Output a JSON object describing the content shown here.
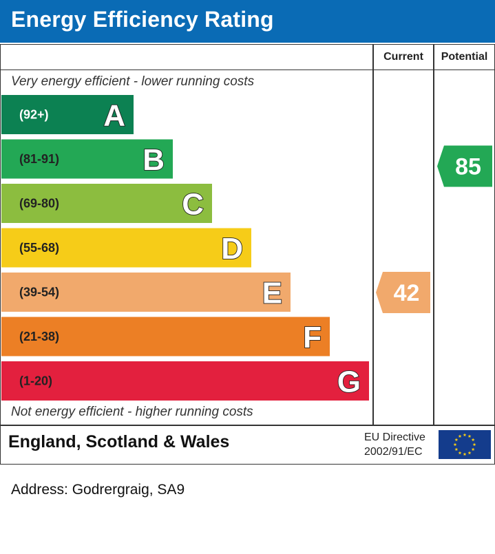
{
  "header": {
    "title": "Energy Efficiency Rating"
  },
  "columns": {
    "current": "Current",
    "potential": "Potential"
  },
  "notes": {
    "top": "Very energy efficient - lower running costs",
    "bottom": "Not energy efficient - higher running costs"
  },
  "footer": {
    "country": "England, Scotland & Wales",
    "directive_line1": "EU Directive",
    "directive_line2": "2002/91/EC",
    "flag_icon": "eu-flag-icon"
  },
  "address": "Address: Godrergraig, SA9",
  "chart_data": {
    "type": "bar",
    "categories": [
      "A",
      "B",
      "C",
      "D",
      "E",
      "F",
      "G"
    ],
    "ranges": [
      "(92+)",
      "(81-91)",
      "(69-80)",
      "(55-68)",
      "(39-54)",
      "(21-38)",
      "(1-20)"
    ],
    "colors": [
      "#0c8152",
      "#23a855",
      "#8cbd3f",
      "#f6cc18",
      "#f1a96c",
      "#ec7f25",
      "#e3203e"
    ],
    "current": {
      "value": 42,
      "band": "E",
      "color": "#f1a96c"
    },
    "potential": {
      "value": 85,
      "band": "B",
      "color": "#23a855"
    }
  }
}
